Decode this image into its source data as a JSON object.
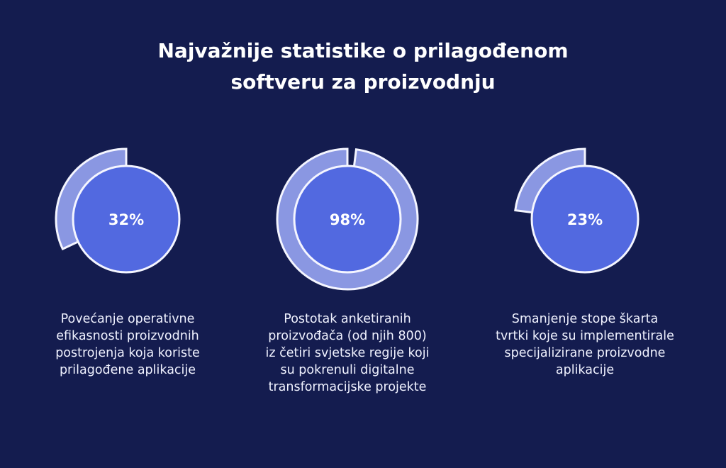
{
  "title": {
    "line1": "Najvažnije statistike o prilagođenom",
    "line2": "softveru za proizvodnju"
  },
  "colors": {
    "background": "#141c4f",
    "inner": "#5269e0",
    "arc": "#8a97e2",
    "stroke": "#f4f5ff"
  },
  "chart_data": {
    "type": "pie",
    "title": "Najvažnije statistike o prilagođenom softveru za proizvodnju",
    "items": [
      {
        "value": 32,
        "label": "32%",
        "caption": [
          "Povećanje operativne",
          "efikasnosti proizvodnih",
          "postrojenja koja koriste",
          "prilagođene aplikacije"
        ]
      },
      {
        "value": 98,
        "label": "98%",
        "caption": [
          "Postotak anketiranih",
          "proizvođača (od njih 800)",
          "iz četiri svjetske regije koji",
          "su pokrenuli digitalne",
          "transformacijske projekte"
        ]
      },
      {
        "value": 23,
        "label": "23%",
        "caption": [
          "Smanjenje stope škarta",
          "tvrtki koje su implementirale",
          "specijalizirane proizvodne",
          "aplikacije"
        ]
      }
    ]
  }
}
